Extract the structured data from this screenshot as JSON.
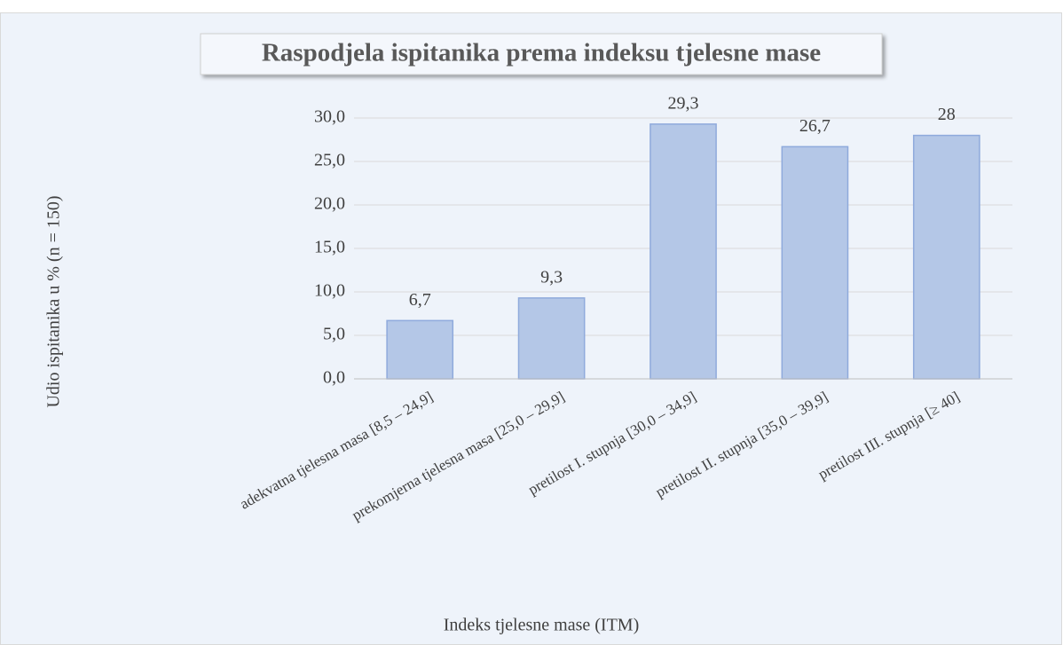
{
  "chart_data": {
    "type": "bar",
    "title": "Raspodjela ispitanika prema indeksu tjelesne mase",
    "x_label": "Indeks tjelesne mase (ITM)",
    "y_label": "Udio ispitanika u %  (n = 150)",
    "categories": [
      "adekvatna tjelesna masa [8,5 – 24,9]",
      "prekomjerna tjelesna masa [25,0 – 29,9]",
      "pretilost I. stupnja [30,0 – 34,9]",
      "pretilost II. stupnja [35,0 – 39,9]",
      "pretilost III. stupnja [≥ 40]"
    ],
    "values": [
      6.7,
      9.3,
      29.3,
      26.7,
      28
    ],
    "value_labels": [
      "6,7",
      "9,3",
      "29,3",
      "26,7",
      "28"
    ],
    "color": "#b4c7e7",
    "ylim": [
      0,
      30
    ],
    "yticks": [
      {
        "value": 0,
        "label": "0,0"
      },
      {
        "value": 5,
        "label": "5,0"
      },
      {
        "value": 10,
        "label": "10,0"
      },
      {
        "value": 15,
        "label": "15,0"
      },
      {
        "value": 20,
        "label": "20,0"
      },
      {
        "value": 25,
        "label": "25,0"
      },
      {
        "value": 30,
        "label": "30,0"
      }
    ],
    "grid": true
  }
}
